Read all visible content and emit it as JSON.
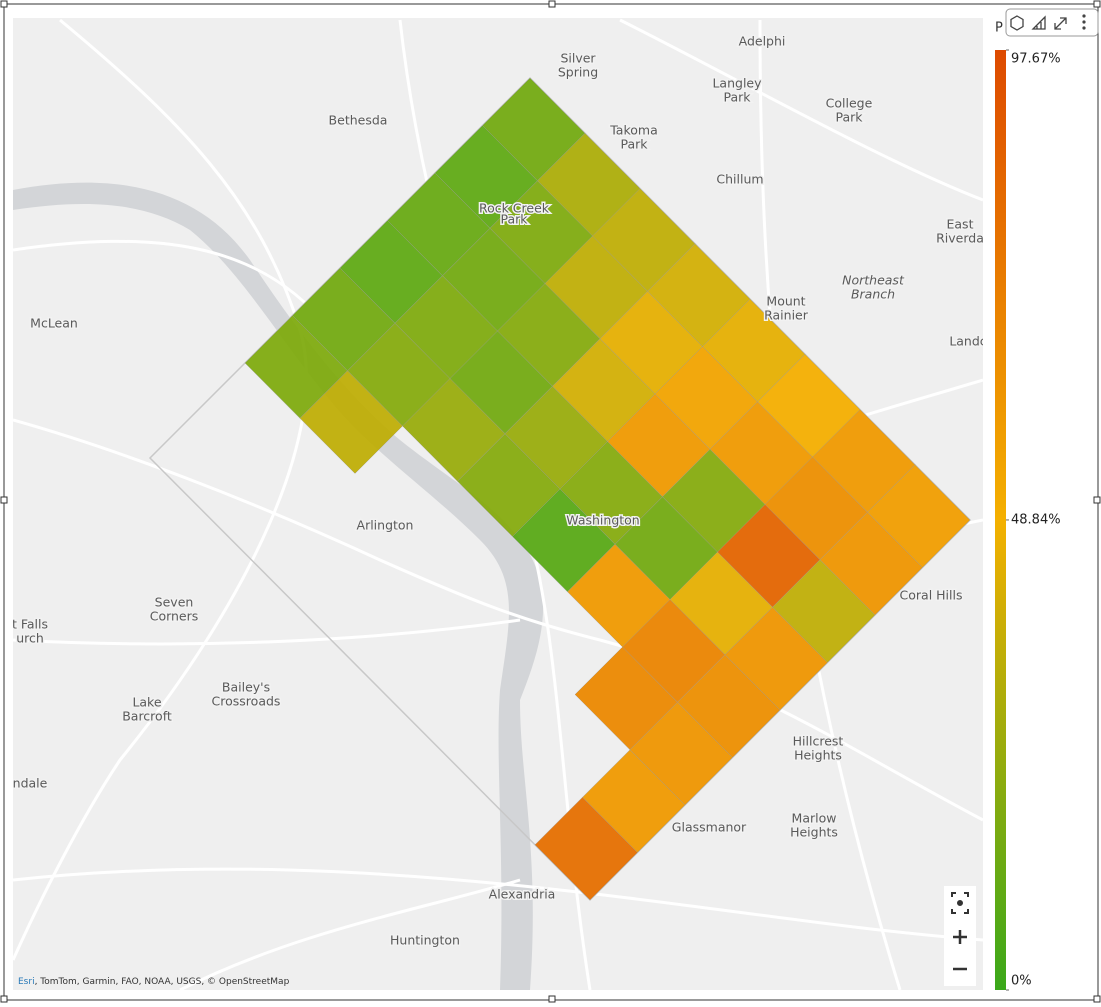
{
  "chart_data": {
    "type": "choropleth",
    "legend_title": "P",
    "scale": {
      "colors": [
        "#3aa81a",
        "#f4b000",
        "#dd4a00"
      ],
      "ticks": [
        {
          "value": 97.67,
          "label": "97.67%"
        },
        {
          "value": 48.84,
          "label": "48.84%"
        },
        {
          "value": 0,
          "label": "0%"
        }
      ],
      "lim": [
        0,
        97.67
      ]
    },
    "regions": [
      15,
      30,
      35,
      40,
      45,
      50,
      60,
      58,
      10,
      18,
      35,
      45,
      55,
      60,
      65,
      62,
      12,
      15,
      20,
      40,
      60,
      20,
      85,
      35,
      10,
      18,
      15,
      25,
      20,
      15,
      45,
      62,
      15,
      20,
      25,
      20,
      8,
      60,
      70,
      65,
      18,
      35,
      null,
      null,
      null,
      null,
      68,
      62,
      null,
      null,
      null,
      null,
      null,
      null,
      null,
      60,
      null,
      null,
      null,
      null,
      null,
      null,
      null,
      80
    ],
    "places": [
      {
        "lines": [
          "Silver",
          "Spring"
        ]
      },
      {
        "lines": [
          "Adelphi"
        ]
      },
      {
        "lines": [
          "Langley",
          "Park"
        ]
      },
      {
        "lines": [
          "College",
          "Park"
        ]
      },
      {
        "lines": [
          "Bethesda"
        ]
      },
      {
        "lines": [
          "Takoma",
          "Park"
        ]
      },
      {
        "lines": [
          "Chillum"
        ]
      },
      {
        "lines": [
          "Rock Creek",
          "Park"
        ]
      },
      {
        "lines": [
          "East",
          "Riverda"
        ]
      },
      {
        "lines": [
          "Northeast",
          "Branch"
        ]
      },
      {
        "lines": [
          "Mount",
          "Rainier"
        ]
      },
      {
        "lines": [
          "McLean"
        ]
      },
      {
        "lines": [
          "Landc"
        ]
      },
      {
        "lines": [
          "Arlington"
        ]
      },
      {
        "lines": [
          "Washington"
        ]
      },
      {
        "lines": [
          "Seven",
          "Corners"
        ]
      },
      {
        "lines": [
          "Coral Hills"
        ]
      },
      {
        "lines": [
          "t Falls",
          "urch"
        ]
      },
      {
        "lines": [
          "Lake",
          "Barcroft"
        ]
      },
      {
        "lines": [
          "Bailey's",
          "Crossroads"
        ]
      },
      {
        "lines": [
          "Hillcrest",
          "Heights"
        ]
      },
      {
        "lines": [
          "Marlow",
          "Heights"
        ]
      },
      {
        "lines": [
          "Glassmanor"
        ]
      },
      {
        "lines": [
          "ndale"
        ]
      },
      {
        "lines": [
          "Alexandria"
        ]
      },
      {
        "lines": [
          "Huntington"
        ]
      }
    ],
    "attribution": {
      "provider": "Esri",
      "rest": ", TomTom, Garmin, FAO, NOAA, USGS, © OpenStreetMap"
    }
  }
}
